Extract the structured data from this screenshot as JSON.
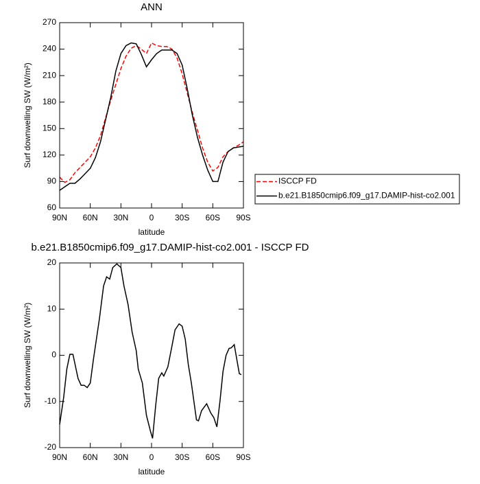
{
  "chart_data": [
    {
      "type": "line",
      "title": "ANN",
      "xlabel": "latitude",
      "ylabel": "Surf downwelling SW (W/m²)",
      "xlim": [
        90,
        -90
      ],
      "ylim": [
        60,
        270
      ],
      "xticks": [
        {
          "value": 90,
          "label": "90N"
        },
        {
          "value": 60,
          "label": "60N"
        },
        {
          "value": 30,
          "label": "30N"
        },
        0,
        {
          "value": -30,
          "label": "30S"
        },
        {
          "value": -60,
          "label": "60S"
        },
        {
          "value": -90,
          "label": "90S"
        }
      ],
      "yticks": [
        60,
        90,
        120,
        150,
        180,
        210,
        240,
        270
      ],
      "x": [
        90,
        85,
        80,
        75,
        70,
        65,
        60,
        55,
        50,
        45,
        40,
        35,
        30,
        25,
        20,
        15,
        10,
        5,
        0,
        -5,
        -10,
        -15,
        -20,
        -25,
        -30,
        -35,
        -40,
        -45,
        -50,
        -55,
        -60,
        -65,
        -70,
        -75,
        -80,
        -85,
        -90
      ],
      "series": [
        {
          "name": "ISCCP FD",
          "color": "#ff0000",
          "dash": true,
          "values": [
            95,
            89,
            92,
            100,
            106,
            112,
            118,
            128,
            142,
            162,
            182,
            200,
            218,
            232,
            241,
            244,
            240,
            235,
            247,
            244,
            243,
            243,
            240,
            230,
            212,
            190,
            168,
            148,
            128,
            112,
            102,
            106,
            118,
            124,
            128,
            131,
            135
          ]
        },
        {
          "name": "b.e21.B1850cmip6.f09_g17.DAMIP-hist-co2.001",
          "color": "#000000",
          "dash": false,
          "values": [
            80,
            84,
            88,
            88,
            93,
            99,
            105,
            117,
            135,
            160,
            185,
            215,
            235,
            244,
            247,
            246,
            234,
            220,
            228,
            235,
            239,
            239,
            239,
            235,
            222,
            195,
            165,
            140,
            120,
            103,
            90,
            90,
            112,
            124,
            128,
            129,
            130
          ]
        }
      ]
    },
    {
      "type": "line",
      "title": "b.e21.B1850cmip6.f09_g17.DAMIP-hist-co2.001 - ISCCP FD",
      "xlabel": "latitude",
      "ylabel": "Surf downwelling SW (W/m²)",
      "xlim": [
        90,
        -90
      ],
      "ylim": [
        -20,
        20
      ],
      "xticks": [
        {
          "value": 90,
          "label": "90N"
        },
        {
          "value": 60,
          "label": "60N"
        },
        {
          "value": 30,
          "label": "30N"
        },
        0,
        {
          "value": -30,
          "label": "30S"
        },
        {
          "value": -60,
          "label": "60S"
        },
        {
          "value": -90,
          "label": "90S"
        }
      ],
      "yticks": [
        -20,
        -10,
        0,
        10,
        20
      ],
      "x": [
        90,
        86,
        83,
        80,
        77,
        72,
        69,
        66,
        63,
        60,
        57,
        51,
        47,
        44,
        41,
        38,
        34,
        30,
        27,
        23,
        19,
        15,
        13,
        9,
        5,
        1,
        -1,
        -4,
        -7,
        -10,
        -12,
        -16,
        -20,
        -23,
        -27,
        -30,
        -33,
        -36,
        -39,
        -44,
        -46,
        -49,
        -54,
        -58,
        -61,
        -64,
        -67,
        -70,
        -73,
        -76,
        -78,
        -81,
        -84,
        -86,
        -88
      ],
      "series": [
        {
          "color": "#000000",
          "dash": false,
          "values": [
            -15,
            -9,
            -3,
            0.2,
            0.2,
            -5,
            -6.5,
            -6.5,
            -7,
            -6,
            -1,
            8,
            15,
            17,
            16.5,
            19,
            19.8,
            19,
            15,
            11,
            5,
            1,
            -3,
            -6,
            -13,
            -16.5,
            -18,
            -11,
            -5,
            -3.8,
            -4.5,
            -2.5,
            2,
            5.5,
            6.8,
            6.3,
            3.5,
            -2,
            -6,
            -14,
            -14.2,
            -12,
            -10.5,
            -12.5,
            -13.5,
            -15.5,
            -10,
            -3.5,
            0,
            1.5,
            1.6,
            2.3,
            -1.5,
            -4,
            -4.2
          ]
        }
      ]
    }
  ]
}
